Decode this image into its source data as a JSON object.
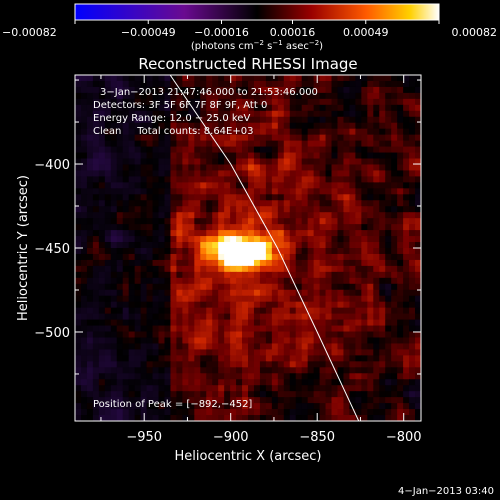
{
  "chart_data": {
    "type": "heatmap",
    "title": "Reconstructed RHESSI Image",
    "xlabel": "Heliocentric X (arcsec)",
    "ylabel": "Heliocentric Y (arcsec)",
    "xlim": [
      -990,
      -790
    ],
    "ylim": [
      -553,
      -347
    ],
    "x_ticks": [
      -950,
      -900,
      -850,
      -800
    ],
    "y_ticks": [
      -400,
      -450,
      -500
    ],
    "x_tick_labels": [
      "−950",
      "−900",
      "−850",
      "−800"
    ],
    "y_tick_labels": [
      "−400",
      "−450",
      "−500"
    ],
    "colorbar": {
      "range": [
        -0.00082,
        0.00082
      ],
      "ticks": [
        -0.00082,
        -0.00049,
        -0.00016,
        0.00016,
        0.00049,
        0.00082
      ],
      "tick_labels": [
        "−0.00082",
        "−0.00049",
        "−0.00016",
        "0.00016",
        "0.00049",
        "0.00082"
      ],
      "unit_main": "(photons cm",
      "unit_sup1": "−2",
      "unit_mid": " s",
      "unit_sup2": "−1",
      "unit_post": " asec",
      "unit_sup3": "−2",
      "unit_close": ")"
    },
    "peak": {
      "x": -892,
      "y": -452
    },
    "limb": [
      [
        -935,
        -347
      ],
      [
        -900,
        -400
      ],
      [
        -873,
        -450
      ],
      [
        -850,
        -500
      ],
      [
        -826,
        -553
      ]
    ],
    "colors": {
      "negative": "#0000ff",
      "zero": "#000000",
      "positive_mid": "#ff3300",
      "positive_high": "#ffffff"
    }
  },
  "annotations": {
    "time_range": "3−Jan−2013 21:47:46.000 to 21:53:46.000",
    "detectors": "Detectors: 3F 5F 6F 7F 8F 9F, Att 0",
    "energy": "Energy Range: 12.0 − 25.0 keV",
    "clean": "Clean     Total counts: 8.64E+03",
    "peak_label": "Position of Peak = [−892,−452]"
  },
  "footer": {
    "date": "4−Jan−2013 03:40"
  }
}
